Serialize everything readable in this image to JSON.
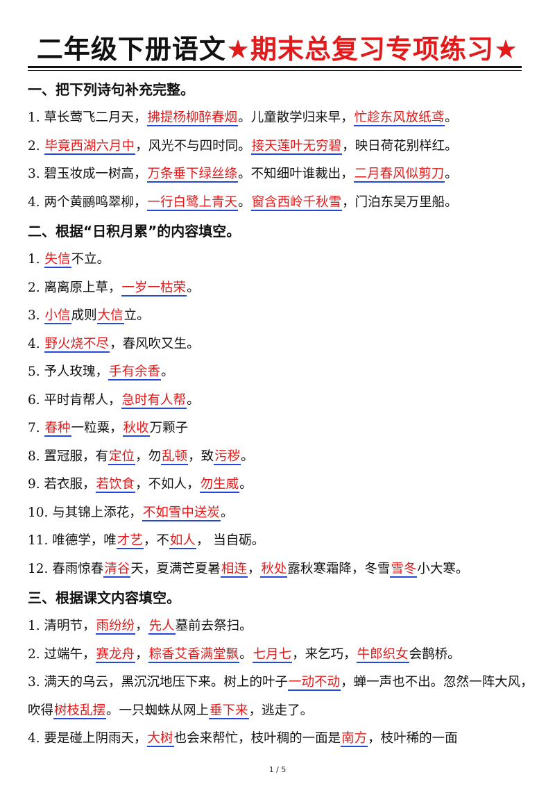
{
  "title": {
    "part1": "二年级下册语文",
    "part2": "★期末总复习专项练习★"
  },
  "sections": [
    {
      "heading": "一、把下列诗句补充完整。",
      "items": [
        [
          {
            "t": "1. 草长莺飞二月天，",
            "a": false
          },
          {
            "t": "拂提杨柳醉春烟",
            "a": true
          },
          {
            "t": "。儿童散学归来早，",
            "a": false
          },
          {
            "t": "忙趁东风放纸鸢",
            "a": true
          },
          {
            "t": "。",
            "a": false
          }
        ],
        [
          {
            "t": "2. ",
            "a": false
          },
          {
            "t": "毕竟西湖六月中",
            "a": true
          },
          {
            "t": "，风光不与四时同。",
            "a": false
          },
          {
            "t": "接天莲叶无穷碧",
            "a": true
          },
          {
            "t": "，映日荷花别样红。",
            "a": false
          }
        ],
        [
          {
            "t": "3. 碧玉妆成一树高，",
            "a": false
          },
          {
            "t": "万条垂下绿丝绦",
            "a": true
          },
          {
            "t": "。不知细叶谁裁出，",
            "a": false
          },
          {
            "t": "二月春风似剪刀",
            "a": true
          },
          {
            "t": "。",
            "a": false
          }
        ],
        [
          {
            "t": "4. 两个黄鹂鸣翠柳，",
            "a": false
          },
          {
            "t": "一行白鹭上青天",
            "a": true
          },
          {
            "t": "。",
            "a": false
          },
          {
            "t": "窗含西岭千秋雪",
            "a": true
          },
          {
            "t": "，门泊东吴万里船。",
            "a": false
          }
        ]
      ]
    },
    {
      "heading": "二、根据“日积月累”的内容填空。",
      "items": [
        [
          {
            "t": "1. ",
            "a": false
          },
          {
            "t": "失信",
            "a": true
          },
          {
            "t": "不立。",
            "a": false
          }
        ],
        [
          {
            "t": "2. 离离原上草，",
            "a": false
          },
          {
            "t": "一岁一枯荣",
            "a": true
          },
          {
            "t": "。",
            "a": false
          }
        ],
        [
          {
            "t": "3. ",
            "a": false
          },
          {
            "t": "小信",
            "a": true
          },
          {
            "t": "成则",
            "a": false
          },
          {
            "t": "大信",
            "a": true
          },
          {
            "t": "立。",
            "a": false
          }
        ],
        [
          {
            "t": "4. ",
            "a": false
          },
          {
            "t": "野火烧不尽",
            "a": true
          },
          {
            "t": "，春风吹又生。",
            "a": false
          }
        ],
        [
          {
            "t": "5. 予人玫瑰，",
            "a": false
          },
          {
            "t": "手有余香",
            "a": true
          },
          {
            "t": "。",
            "a": false
          }
        ],
        [
          {
            "t": "6. 平时肯帮人，",
            "a": false
          },
          {
            "t": "急时有人帮",
            "a": true
          },
          {
            "t": "。",
            "a": false
          }
        ],
        [
          {
            "t": "7. ",
            "a": false
          },
          {
            "t": "春种",
            "a": true
          },
          {
            "t": "一粒粟，",
            "a": false
          },
          {
            "t": "秋收",
            "a": true
          },
          {
            "t": "万颗子",
            "a": false
          }
        ],
        [
          {
            "t": "8. 置冠服，有",
            "a": false
          },
          {
            "t": "定位",
            "a": true
          },
          {
            "t": "，勿",
            "a": false
          },
          {
            "t": "乱顿",
            "a": true
          },
          {
            "t": "，致",
            "a": false
          },
          {
            "t": "污秽",
            "a": true
          },
          {
            "t": "。",
            "a": false
          }
        ],
        [
          {
            "t": "9. 若衣服，",
            "a": false
          },
          {
            "t": "若饮食",
            "a": true
          },
          {
            "t": "，不如人，",
            "a": false
          },
          {
            "t": "勿生威",
            "a": true
          },
          {
            "t": "。",
            "a": false
          }
        ],
        [
          {
            "t": "10. 与其锦上添花，",
            "a": false
          },
          {
            "t": "不如雪中送炭",
            "a": true
          },
          {
            "t": "。",
            "a": false
          }
        ],
        [
          {
            "t": "11. 唯德学，唯",
            "a": false
          },
          {
            "t": "才艺",
            "a": true
          },
          {
            "t": "，不",
            "a": false
          },
          {
            "t": "如人",
            "a": true
          },
          {
            "t": "， 当自砺。",
            "a": false
          }
        ],
        [
          {
            "t": "12. 春雨惊春",
            "a": false
          },
          {
            "t": "清谷",
            "a": true
          },
          {
            "t": "天，夏满芒夏暑",
            "a": false
          },
          {
            "t": "相连",
            "a": true
          },
          {
            "t": "，",
            "a": false
          },
          {
            "t": "秋处",
            "a": true
          },
          {
            "t": "露秋寒霜降，冬雪",
            "a": false
          },
          {
            "t": "雪冬",
            "a": true
          },
          {
            "t": "小大寒。",
            "a": false
          }
        ]
      ]
    },
    {
      "heading": "三、根据课文内容填空。",
      "items": [
        [
          {
            "t": "1. 清明节，",
            "a": false
          },
          {
            "t": "雨纷纷",
            "a": true
          },
          {
            "t": "，",
            "a": false
          },
          {
            "t": "先人",
            "a": true
          },
          {
            "t": "墓前去祭扫。",
            "a": false
          }
        ],
        [
          {
            "t": "2. 过端午，",
            "a": false
          },
          {
            "t": "赛龙舟",
            "a": true
          },
          {
            "t": "，",
            "a": false
          },
          {
            "t": "粽香艾香满堂飘",
            "a": true
          },
          {
            "t": "。",
            "a": false
          },
          {
            "t": "七月七",
            "a": true
          },
          {
            "t": "，来乞巧，",
            "a": false
          },
          {
            "t": "牛郎织女",
            "a": true
          },
          {
            "t": "会鹊桥。",
            "a": false
          }
        ],
        [
          {
            "t": "3. 满天的乌云，黑沉沉地压下来。树上的叶子",
            "a": false
          },
          {
            "t": "一动不动",
            "a": true
          },
          {
            "t": "，蝉一声也不出。忽然一阵大风，吹得",
            "a": false
          },
          {
            "t": "树枝乱摆",
            "a": true
          },
          {
            "t": "。一只蜘蛛从网上",
            "a": false
          },
          {
            "t": "垂下来",
            "a": true
          },
          {
            "t": "，逃走了。",
            "a": false
          }
        ],
        [
          {
            "t": "4. 要是碰上阴雨天，",
            "a": false
          },
          {
            "t": "大树",
            "a": true
          },
          {
            "t": "也会来帮忙，枝叶稠的一面是",
            "a": false
          },
          {
            "t": "南方",
            "a": true
          },
          {
            "t": "，枝叶稀的一面",
            "a": false
          }
        ]
      ]
    }
  ],
  "page_number": "1 / 5"
}
